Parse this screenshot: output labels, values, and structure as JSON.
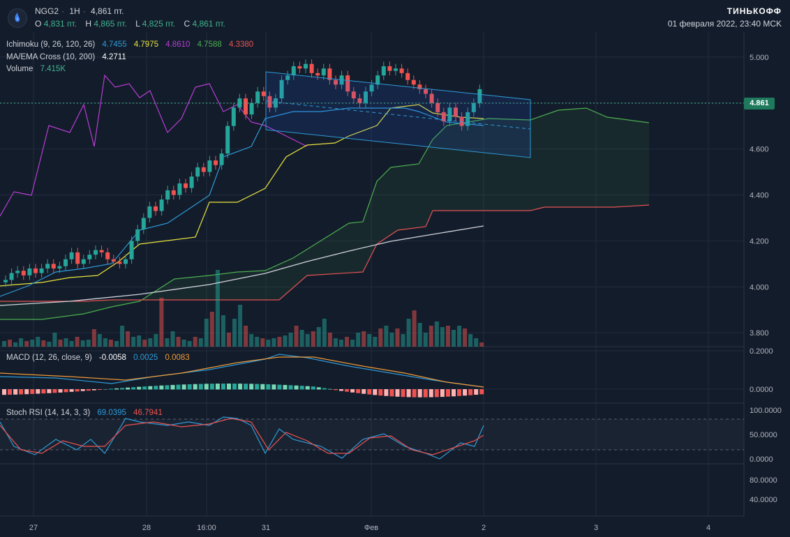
{
  "header": {
    "symbol": "NGG2",
    "interval": "1H",
    "last_price": "4,861 пт.",
    "ohlc": {
      "o": "4,831 пт.",
      "h": "4,865 пт.",
      "l": "4,825 пт.",
      "c": "4,861 пт."
    },
    "labels": {
      "o": "O",
      "h": "H",
      "l": "L",
      "c": "C"
    },
    "brand": "ТИНЬКОФФ",
    "datetime": "01 февраля 2022, 23:40 MCK"
  },
  "indicators": {
    "ichimoku": {
      "name": "Ichimoku (9, 26, 120, 26)",
      "values": [
        "4.7455",
        "4.7975",
        "4.8610",
        "4.7588",
        "4.3380"
      ],
      "colors": [
        "#2e9cd8",
        "#e9e43e",
        "#b83ed3",
        "#4caf50",
        "#ef5350"
      ]
    },
    "ma_cross": {
      "name": "MA/EMA Cross (10, 200)",
      "value": "4.2711"
    },
    "volume": {
      "name": "Volume",
      "value": "7.415K"
    },
    "macd": {
      "name": "MACD (12, 26, close, 9)",
      "values": [
        "-0.0058",
        "0.0025",
        "0.0083"
      ],
      "colors": [
        "#ffffff",
        "#2e9cd8",
        "#f09a37"
      ]
    },
    "stoch": {
      "name": "Stoch RSI (14, 14, 3, 3)",
      "values": [
        "69.0395",
        "46.7941"
      ],
      "colors": [
        "#2e9cd8",
        "#ef5350"
      ]
    }
  },
  "price_axis": [
    "5.000",
    "4.800",
    "4.600",
    "4.400",
    "4.200",
    "4.000",
    "3.800"
  ],
  "macd_axis": [
    "0.2000",
    "0.0000"
  ],
  "stoch_axis": [
    "100.0000",
    "50.0000",
    "0.0000"
  ],
  "extra_axis": [
    "80.0000",
    "40.0000"
  ],
  "time_axis": [
    "27",
    "28",
    "16:00",
    "31",
    "Фев",
    "2",
    "3",
    "4"
  ],
  "current_price_label": "4.861",
  "colors": {
    "up": "#26a69a",
    "down": "#ef5350",
    "bg": "#131c2b",
    "grid": "#212c3d"
  },
  "chart_data": {
    "type": "candlestick",
    "ohlc_close_approx": [
      4.03,
      4.06,
      4.07,
      4.05,
      4.08,
      4.06,
      4.08,
      4.1,
      4.08,
      4.09,
      4.12,
      4.15,
      4.1,
      4.12,
      4.14,
      4.16,
      4.15,
      4.12,
      4.11,
      4.1,
      4.12,
      4.2,
      4.25,
      4.3,
      4.35,
      4.33,
      4.38,
      4.42,
      4.4,
      4.45,
      4.43,
      4.48,
      4.52,
      4.5,
      4.55,
      4.53,
      4.58,
      4.7,
      4.78,
      4.82,
      4.75,
      4.8,
      4.85,
      4.83,
      4.78,
      4.82,
      4.9,
      4.92,
      4.96,
      4.95,
      4.97,
      4.93,
      4.92,
      4.95,
      4.9,
      4.88,
      4.92,
      4.85,
      4.82,
      4.8,
      4.85,
      4.88,
      4.92,
      4.96,
      4.94,
      4.95,
      4.93,
      4.9,
      4.88,
      4.86,
      4.84,
      4.8,
      4.76,
      4.72,
      4.78,
      4.74,
      4.7,
      4.76,
      4.8,
      4.86
    ],
    "price_range": [
      3.76,
      5.06
    ]
  }
}
